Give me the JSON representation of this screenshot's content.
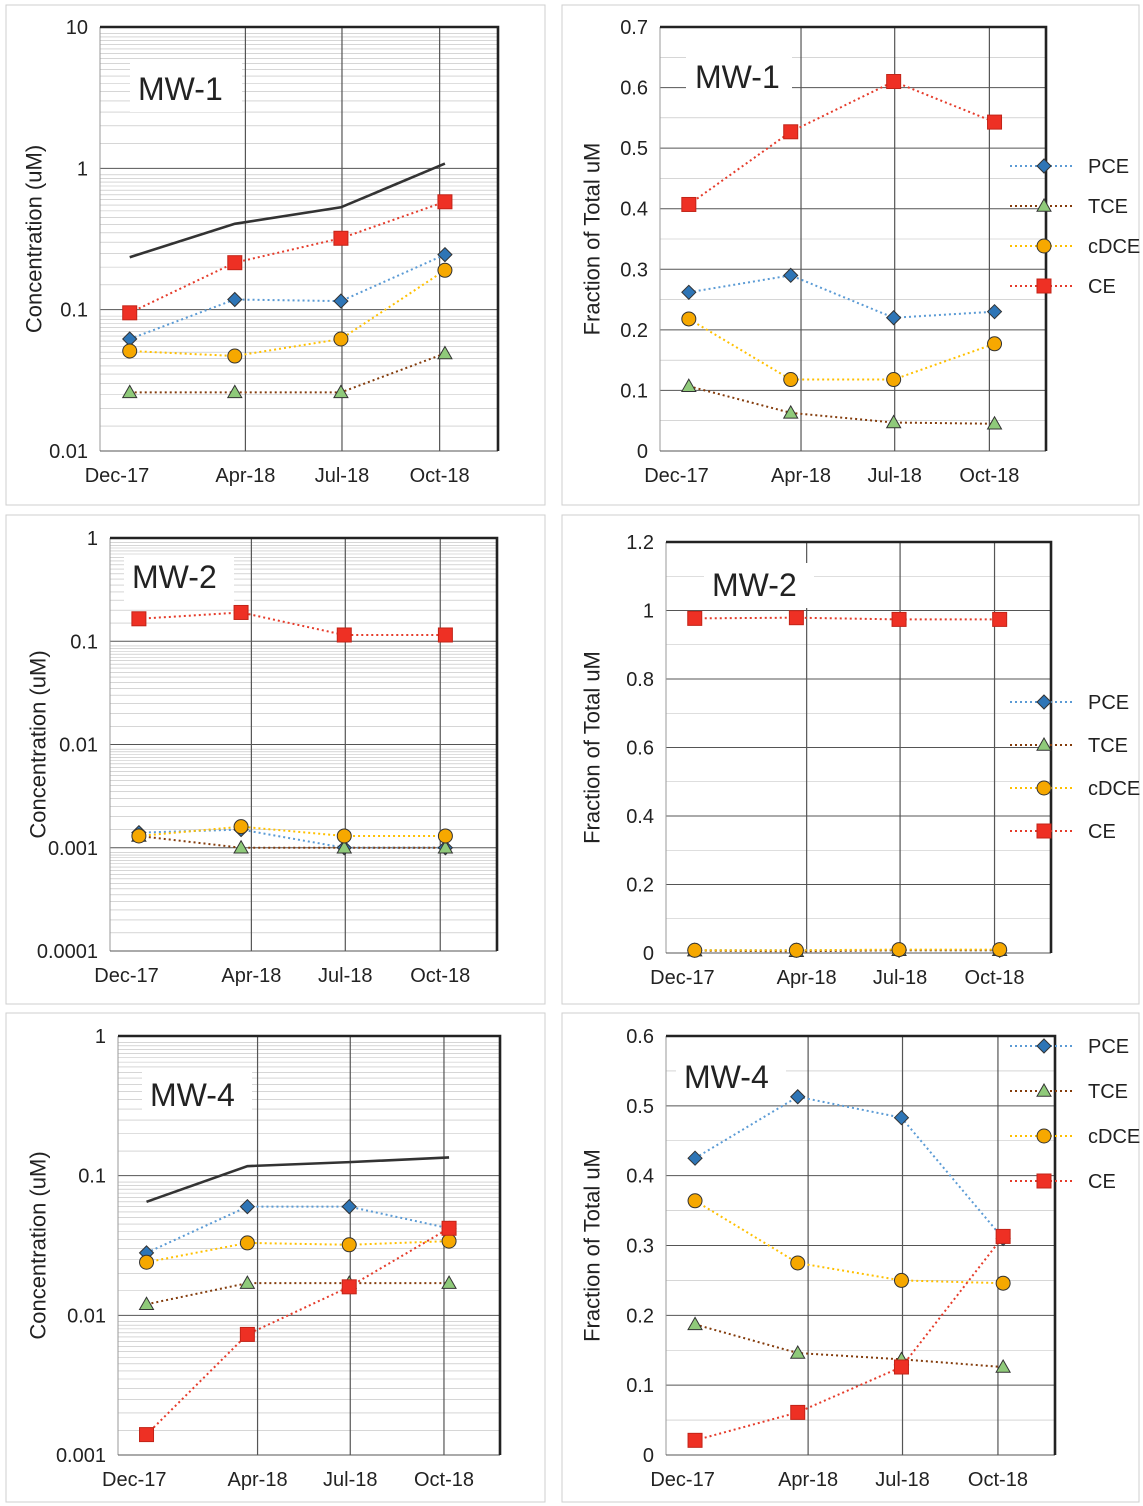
{
  "series_styles": {
    "PCE": {
      "line": "#5b9bd5",
      "fill": "#2e75b6",
      "marker": "diamond"
    },
    "TCE": {
      "line": "#843c0c",
      "fill": "#8fca7a",
      "marker": "triangle"
    },
    "cDCE": {
      "line": "#ffc000",
      "fill": "#f6a800",
      "marker": "circle"
    },
    "CE": {
      "line": "#e53c2b",
      "fill": "#ee3024",
      "marker": "square"
    },
    "Total": {
      "line": "#333333",
      "fill": "none",
      "marker": "none"
    }
  },
  "chart_data": [
    {
      "id": "mw1-conc",
      "type": "line",
      "title": "MW-1",
      "ylabel": "Concentration (uM)",
      "yscale": "log",
      "ylim": [
        0.01,
        10
      ],
      "yticks": [
        "0.01",
        "0.1",
        "1",
        "10"
      ],
      "xlim": [
        "2017-11-15",
        "2018-11-25"
      ],
      "xticks": [
        {
          "date": "2017-12-01",
          "label": "Dec-17"
        },
        {
          "date": "2018-04-01",
          "label": "Apr-18"
        },
        {
          "date": "2018-07-01",
          "label": "Jul-18"
        },
        {
          "date": "2018-10-01",
          "label": "Oct-18"
        }
      ],
      "sample_dates": [
        "2017-12-13",
        "2018-03-22",
        "2018-06-30",
        "2018-10-06"
      ],
      "legend": false,
      "series": [
        {
          "key": "PCE",
          "values": [
            0.062,
            0.118,
            0.115,
            0.245
          ]
        },
        {
          "key": "TCE",
          "values": [
            0.026,
            0.026,
            0.026,
            0.049
          ]
        },
        {
          "key": "cDCE",
          "values": [
            0.051,
            0.047,
            0.062,
            0.19
          ]
        },
        {
          "key": "CE",
          "values": [
            0.095,
            0.215,
            0.32,
            0.58
          ]
        },
        {
          "key": "Total",
          "values": [
            0.235,
            0.405,
            0.53,
            1.08
          ]
        }
      ]
    },
    {
      "id": "mw1-frac",
      "type": "line",
      "title": "MW-1",
      "ylabel": "Fraction of Total uM",
      "yscale": "linear",
      "ylim": [
        0,
        0.7
      ],
      "yticks": [
        "0",
        "0.1",
        "0.2",
        "0.3",
        "0.4",
        "0.5",
        "0.6",
        "0.7"
      ],
      "xlim": [
        "2017-11-15",
        "2018-11-25"
      ],
      "xticks": [
        {
          "date": "2017-12-01",
          "label": "Dec-17"
        },
        {
          "date": "2018-04-01",
          "label": "Apr-18"
        },
        {
          "date": "2018-07-01",
          "label": "Jul-18"
        },
        {
          "date": "2018-10-01",
          "label": "Oct-18"
        }
      ],
      "sample_dates": [
        "2017-12-13",
        "2018-03-22",
        "2018-06-30",
        "2018-10-06"
      ],
      "legend": true,
      "series": [
        {
          "key": "PCE",
          "name": "PCE",
          "values": [
            0.262,
            0.29,
            0.22,
            0.23
          ]
        },
        {
          "key": "TCE",
          "name": "TCE",
          "values": [
            0.107,
            0.063,
            0.047,
            0.045
          ]
        },
        {
          "key": "cDCE",
          "name": "cDCE",
          "values": [
            0.218,
            0.118,
            0.118,
            0.177
          ]
        },
        {
          "key": "CE",
          "name": "CE",
          "values": [
            0.407,
            0.527,
            0.61,
            0.543
          ]
        }
      ]
    },
    {
      "id": "mw2-conc",
      "type": "line",
      "title": "MW-2",
      "ylabel": "Concentration (uM)",
      "yscale": "log",
      "ylim": [
        0.0001,
        1
      ],
      "yticks": [
        "0.0001",
        "0.001",
        "0.01",
        "0.1",
        "1"
      ],
      "xlim": [
        "2017-11-15",
        "2018-11-25"
      ],
      "xticks": [
        {
          "date": "2017-12-01",
          "label": "Dec-17"
        },
        {
          "date": "2018-04-01",
          "label": "Apr-18"
        },
        {
          "date": "2018-07-01",
          "label": "Jul-18"
        },
        {
          "date": "2018-10-01",
          "label": "Oct-18"
        }
      ],
      "sample_dates": [
        "2017-12-13",
        "2018-03-22",
        "2018-06-30",
        "2018-10-06"
      ],
      "legend": false,
      "series": [
        {
          "key": "PCE",
          "values": [
            0.0014,
            0.0015,
            0.001,
            0.001
          ]
        },
        {
          "key": "TCE",
          "values": [
            0.0013,
            0.001,
            0.001,
            0.001
          ]
        },
        {
          "key": "cDCE",
          "values": [
            0.0013,
            0.0016,
            0.0013,
            0.0013
          ]
        },
        {
          "key": "CE",
          "values": [
            0.165,
            0.19,
            0.115,
            0.115
          ]
        }
      ]
    },
    {
      "id": "mw2-frac",
      "type": "line",
      "title": "MW-2",
      "ylabel": "Fraction of Total uM",
      "yscale": "linear",
      "ylim": [
        0,
        1.2
      ],
      "yticks": [
        "0",
        "0.2",
        "0.4",
        "0.6",
        "0.8",
        "1",
        "1.2"
      ],
      "xlim": [
        "2017-11-15",
        "2018-11-25"
      ],
      "xticks": [
        {
          "date": "2017-12-01",
          "label": "Dec-17"
        },
        {
          "date": "2018-04-01",
          "label": "Apr-18"
        },
        {
          "date": "2018-07-01",
          "label": "Jul-18"
        },
        {
          "date": "2018-10-01",
          "label": "Oct-18"
        }
      ],
      "sample_dates": [
        "2017-12-13",
        "2018-03-22",
        "2018-06-30",
        "2018-10-06"
      ],
      "legend": true,
      "series": [
        {
          "key": "PCE",
          "name": "PCE",
          "values": [
            0.008,
            0.008,
            0.008,
            0.008
          ]
        },
        {
          "key": "TCE",
          "name": "TCE",
          "values": [
            0.007,
            0.005,
            0.008,
            0.008
          ]
        },
        {
          "key": "cDCE",
          "name": "cDCE",
          "values": [
            0.008,
            0.008,
            0.01,
            0.01
          ]
        },
        {
          "key": "CE",
          "name": "CE",
          "values": [
            0.977,
            0.979,
            0.974,
            0.974
          ]
        }
      ]
    },
    {
      "id": "mw4-conc",
      "type": "line",
      "title": "MW-4",
      "ylabel": "Concentration (uM)",
      "yscale": "log",
      "ylim": [
        0.001,
        1
      ],
      "yticks": [
        "0.001",
        "0.01",
        "0.1",
        "1"
      ],
      "xlim": [
        "2017-11-15",
        "2018-11-25"
      ],
      "xticks": [
        {
          "date": "2017-12-01",
          "label": "Dec-17"
        },
        {
          "date": "2018-04-01",
          "label": "Apr-18"
        },
        {
          "date": "2018-07-01",
          "label": "Jul-18"
        },
        {
          "date": "2018-10-01",
          "label": "Oct-18"
        }
      ],
      "sample_dates": [
        "2017-12-13",
        "2018-03-22",
        "2018-06-30",
        "2018-10-06"
      ],
      "legend": false,
      "series": [
        {
          "key": "PCE",
          "values": [
            0.028,
            0.06,
            0.06,
            0.042
          ]
        },
        {
          "key": "TCE",
          "values": [
            0.012,
            0.017,
            0.017,
            0.017
          ]
        },
        {
          "key": "cDCE",
          "values": [
            0.024,
            0.033,
            0.032,
            0.034
          ]
        },
        {
          "key": "CE",
          "values": [
            0.0014,
            0.0073,
            0.016,
            0.042
          ]
        },
        {
          "key": "Total",
          "values": [
            0.065,
            0.117,
            0.125,
            0.135
          ]
        }
      ]
    },
    {
      "id": "mw4-frac",
      "type": "line",
      "title": "MW-4",
      "ylabel": "Fraction of Total uM",
      "yscale": "linear",
      "ylim": [
        0,
        0.6
      ],
      "yticks": [
        "0",
        "0.1",
        "0.2",
        "0.3",
        "0.4",
        "0.5",
        "0.6"
      ],
      "xlim": [
        "2017-11-15",
        "2018-11-25"
      ],
      "xticks": [
        {
          "date": "2017-12-01",
          "label": "Dec-17"
        },
        {
          "date": "2018-04-01",
          "label": "Apr-18"
        },
        {
          "date": "2018-07-01",
          "label": "Jul-18"
        },
        {
          "date": "2018-10-01",
          "label": "Oct-18"
        }
      ],
      "sample_dates": [
        "2017-12-13",
        "2018-03-22",
        "2018-06-30",
        "2018-10-06"
      ],
      "legend": true,
      "series": [
        {
          "key": "PCE",
          "name": "PCE",
          "values": [
            0.425,
            0.513,
            0.483,
            0.31
          ]
        },
        {
          "key": "TCE",
          "name": "TCE",
          "values": [
            0.187,
            0.146,
            0.137,
            0.126
          ]
        },
        {
          "key": "cDCE",
          "name": "cDCE",
          "values": [
            0.364,
            0.275,
            0.25,
            0.246
          ]
        },
        {
          "key": "CE",
          "name": "CE",
          "values": [
            0.021,
            0.061,
            0.126,
            0.313
          ]
        }
      ]
    }
  ]
}
